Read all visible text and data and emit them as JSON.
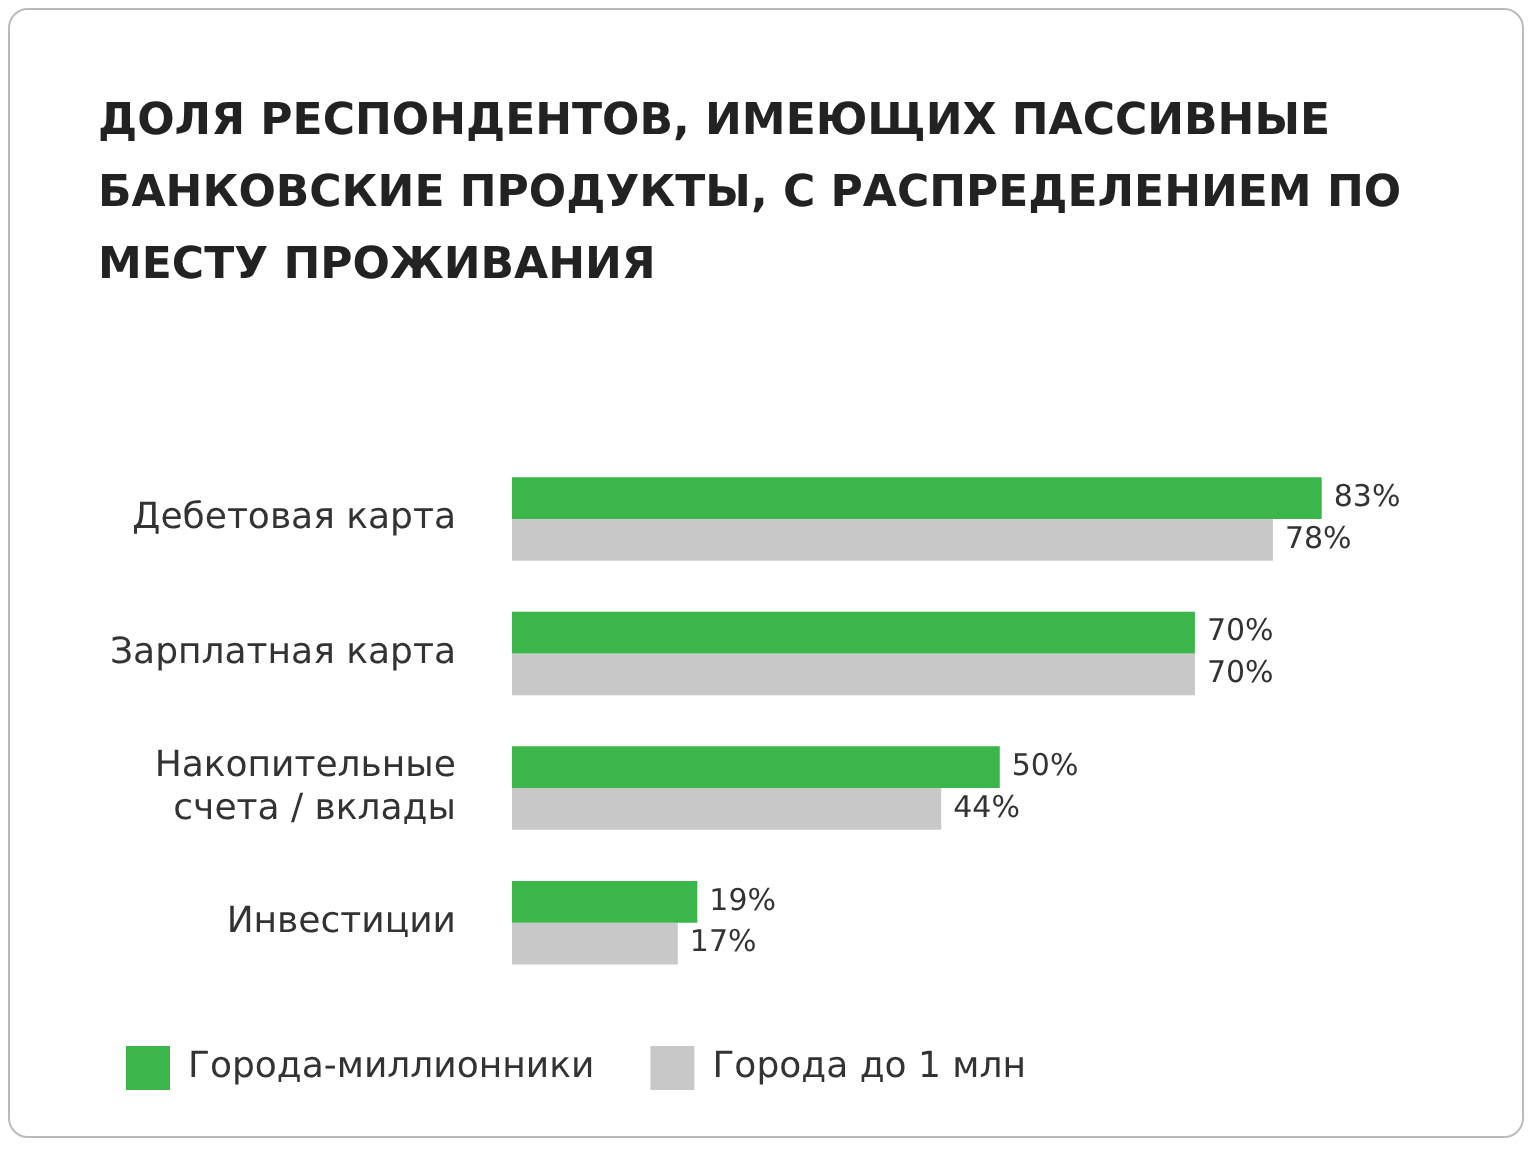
{
  "chart_data": {
    "type": "bar",
    "orientation": "horizontal",
    "title": "ДОЛЯ РЕСПОНДЕНТОВ, ИМЕЮЩИХ ПАССИВНЫЕ БАНКОВСКИЕ ПРОДУКТЫ, С РАСПРЕДЕЛЕНИЕМ ПО МЕСТУ ПРОЖИВАНИЯ",
    "categories": [
      "Дебетовая карта",
      "Зарплатная карта",
      "Накопительные счета / вклады",
      "Инвестиции"
    ],
    "series": [
      {
        "name": "Города-миллионники",
        "color": "#3cb54a",
        "values": [
          83,
          70,
          50,
          19
        ],
        "value_labels": [
          "83%",
          "70%",
          "50%",
          "19%"
        ]
      },
      {
        "name": "Города до 1 млн",
        "color": "#c8c8c8",
        "values": [
          78,
          70,
          44,
          17
        ],
        "value_labels": [
          "78%",
          "70%",
          "44%",
          "17%"
        ]
      }
    ],
    "legend": "bottom",
    "grid": false
  }
}
